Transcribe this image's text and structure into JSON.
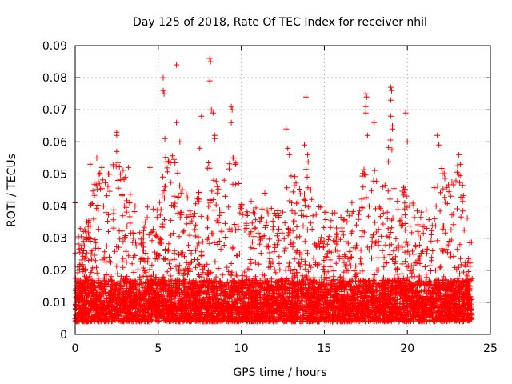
{
  "chart_data": {
    "type": "scatter",
    "title": "Day 125 of 2018, Rate Of TEC Index for receiver nhil",
    "xlabel": "GPS time / hours",
    "ylabel": "ROTI / TECUs",
    "xlim": [
      0,
      25
    ],
    "ylim": [
      0,
      0.09
    ],
    "xticks": [
      0,
      5,
      10,
      15,
      20,
      25
    ],
    "yticks": [
      0,
      0.01,
      0.02,
      0.03,
      0.04,
      0.05,
      0.06,
      0.07,
      0.08,
      0.09
    ],
    "xtick_labels": [
      "0",
      "5",
      "10",
      "15",
      "20",
      "25"
    ],
    "ytick_labels": [
      "0",
      "0.01",
      "0.02",
      "0.03",
      "0.04",
      "0.05",
      "0.06",
      "0.07",
      "0.08",
      "0.09"
    ],
    "grid": true,
    "marker": "+",
    "series_color": "#ff0000",
    "data_range": {
      "x_min": 0,
      "x_max": 23.9
    },
    "envelope": {
      "hours": [
        0,
        0.5,
        1,
        1.5,
        2,
        2.5,
        3,
        3.5,
        4,
        4.5,
        5,
        5.5,
        6,
        6.5,
        7,
        7.5,
        8,
        8.5,
        9,
        9.5,
        10,
        10.5,
        11,
        11.5,
        12,
        12.5,
        13,
        13.5,
        14,
        14.5,
        15,
        15.5,
        16,
        16.5,
        17,
        17.5,
        18,
        18.5,
        19,
        19.5,
        20,
        20.5,
        21,
        21.5,
        22,
        22.5,
        23,
        23.5,
        23.9
      ],
      "typical_max": [
        0.03,
        0.033,
        0.045,
        0.052,
        0.05,
        0.055,
        0.05,
        0.042,
        0.038,
        0.042,
        0.04,
        0.06,
        0.055,
        0.048,
        0.042,
        0.045,
        0.055,
        0.05,
        0.048,
        0.058,
        0.045,
        0.042,
        0.04,
        0.045,
        0.042,
        0.05,
        0.055,
        0.048,
        0.055,
        0.042,
        0.04,
        0.04,
        0.038,
        0.04,
        0.045,
        0.055,
        0.055,
        0.05,
        0.062,
        0.048,
        0.045,
        0.04,
        0.038,
        0.045,
        0.055,
        0.048,
        0.055,
        0.042,
        0.03
      ]
    },
    "points": [
      {
        "x": 0.0,
        "y": 0.041
      },
      {
        "x": 0.3,
        "y": 0.033
      },
      {
        "x": 0.9,
        "y": 0.053
      },
      {
        "x": 1.3,
        "y": 0.055
      },
      {
        "x": 1.6,
        "y": 0.052
      },
      {
        "x": 2.0,
        "y": 0.05
      },
      {
        "x": 2.5,
        "y": 0.063
      },
      {
        "x": 2.5,
        "y": 0.062
      },
      {
        "x": 2.5,
        "y": 0.057
      },
      {
        "x": 3.2,
        "y": 0.052
      },
      {
        "x": 4.5,
        "y": 0.052
      },
      {
        "x": 5.3,
        "y": 0.08
      },
      {
        "x": 5.3,
        "y": 0.076
      },
      {
        "x": 5.35,
        "y": 0.075
      },
      {
        "x": 5.4,
        "y": 0.061
      },
      {
        "x": 6.1,
        "y": 0.084
      },
      {
        "x": 6.1,
        "y": 0.066
      },
      {
        "x": 6.3,
        "y": 0.06
      },
      {
        "x": 7.5,
        "y": 0.058
      },
      {
        "x": 7.6,
        "y": 0.068
      },
      {
        "x": 8.1,
        "y": 0.086
      },
      {
        "x": 8.15,
        "y": 0.085
      },
      {
        "x": 8.1,
        "y": 0.079
      },
      {
        "x": 8.2,
        "y": 0.07
      },
      {
        "x": 8.3,
        "y": 0.069
      },
      {
        "x": 8.4,
        "y": 0.062
      },
      {
        "x": 8.4,
        "y": 0.061
      },
      {
        "x": 9.4,
        "y": 0.071
      },
      {
        "x": 9.45,
        "y": 0.07
      },
      {
        "x": 9.4,
        "y": 0.066
      },
      {
        "x": 9.5,
        "y": 0.055
      },
      {
        "x": 12.7,
        "y": 0.064
      },
      {
        "x": 12.8,
        "y": 0.058
      },
      {
        "x": 12.9,
        "y": 0.056
      },
      {
        "x": 13.8,
        "y": 0.059
      },
      {
        "x": 13.9,
        "y": 0.074
      },
      {
        "x": 14.0,
        "y": 0.056
      },
      {
        "x": 17.5,
        "y": 0.075
      },
      {
        "x": 17.55,
        "y": 0.074
      },
      {
        "x": 17.5,
        "y": 0.071
      },
      {
        "x": 17.5,
        "y": 0.069
      },
      {
        "x": 17.6,
        "y": 0.062
      },
      {
        "x": 18.0,
        "y": 0.066
      },
      {
        "x": 19.0,
        "y": 0.077
      },
      {
        "x": 19.05,
        "y": 0.076
      },
      {
        "x": 19.0,
        "y": 0.073
      },
      {
        "x": 19.0,
        "y": 0.068
      },
      {
        "x": 19.1,
        "y": 0.065
      },
      {
        "x": 19.1,
        "y": 0.064
      },
      {
        "x": 19.9,
        "y": 0.069
      },
      {
        "x": 20.0,
        "y": 0.06
      },
      {
        "x": 21.8,
        "y": 0.062
      },
      {
        "x": 21.9,
        "y": 0.059
      },
      {
        "x": 23.1,
        "y": 0.056
      },
      {
        "x": 23.2,
        "y": 0.053
      }
    ]
  }
}
